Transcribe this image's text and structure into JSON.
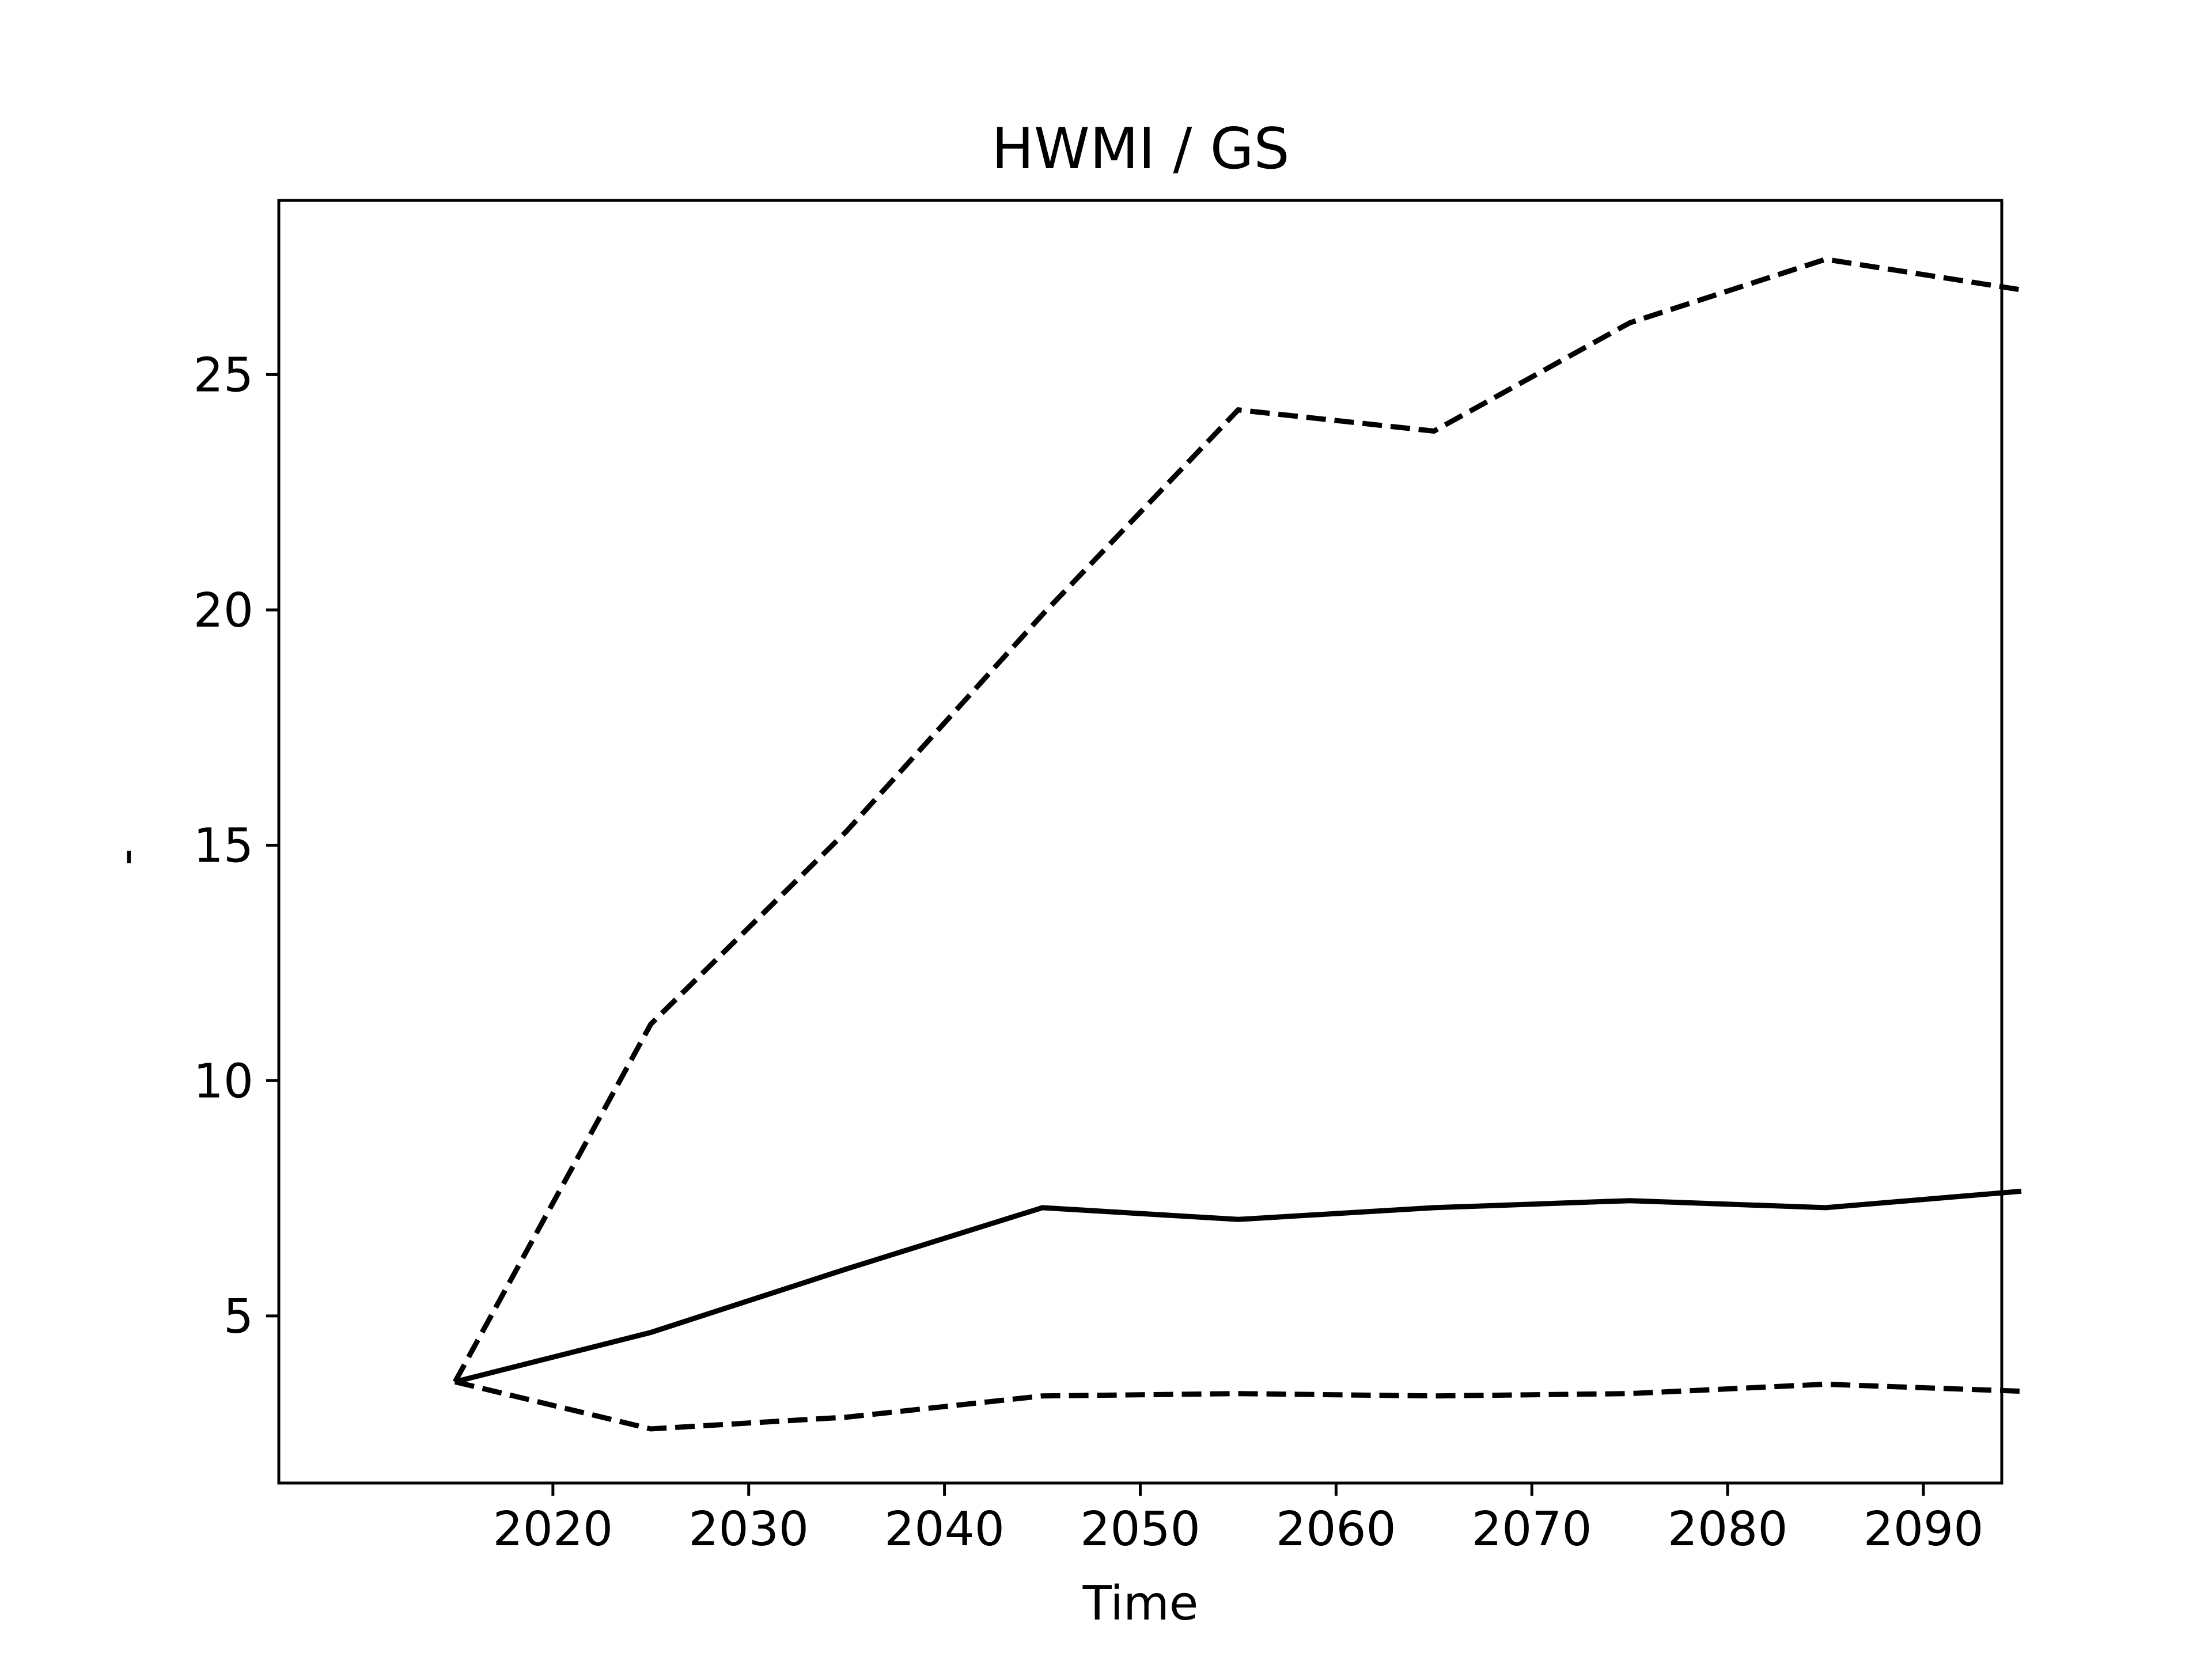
{
  "chart_data": {
    "type": "line",
    "title": "HWMI / GS",
    "xlabel": "Time",
    "ylabel": "-",
    "x": [
      2015,
      2025,
      2035,
      2045,
      2055,
      2065,
      2075,
      2085,
      2095
    ],
    "xlim": [
      2006,
      2094
    ],
    "ylim": [
      1.45,
      28.7
    ],
    "xticks": [
      2020,
      2030,
      2040,
      2050,
      2060,
      2070,
      2080,
      2090
    ],
    "yticks": [
      5,
      10,
      15,
      20,
      25
    ],
    "grid": false,
    "legend": "none",
    "series": [
      {
        "style": "solid",
        "color": "#000000",
        "values": [
          3.6,
          4.65,
          6.0,
          7.3,
          7.05,
          7.3,
          7.45,
          7.3,
          7.65
        ]
      },
      {
        "style": "dashed",
        "color": "#000000",
        "values": [
          3.6,
          11.2,
          15.3,
          19.9,
          24.25,
          23.8,
          26.1,
          27.45,
          26.8
        ]
      },
      {
        "style": "dashed",
        "color": "#000000",
        "values": [
          3.6,
          2.6,
          2.85,
          3.3,
          3.35,
          3.3,
          3.35,
          3.55,
          3.4
        ]
      }
    ]
  }
}
